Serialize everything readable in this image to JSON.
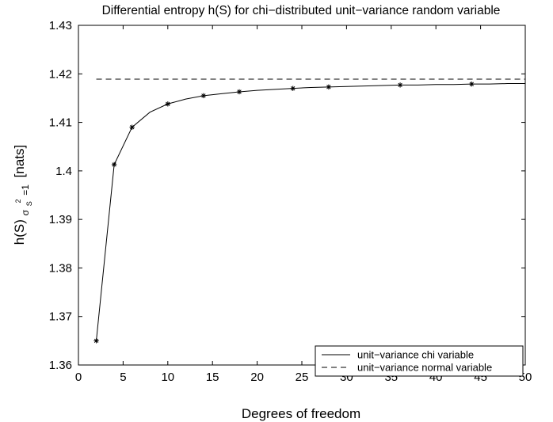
{
  "chart_data": {
    "type": "line",
    "title": "Differential entropy h(S) for chi−distributed unit−variance random variable",
    "xlabel": "Degrees of freedom",
    "ylabel": {
      "main": "h(S)",
      "sub_sigma": "σ",
      "sub_s": "S",
      "sup": "2",
      "sub_rest": "=1",
      "unit": "[nats]"
    },
    "xlim": [
      0,
      50
    ],
    "ylim": [
      1.36,
      1.43
    ],
    "xticks": [
      0,
      5,
      10,
      15,
      20,
      25,
      30,
      35,
      40,
      45,
      50
    ],
    "yticks": [
      1.36,
      1.37,
      1.38,
      1.39,
      1.4,
      1.41,
      1.42,
      1.43
    ],
    "xtick_labels": [
      "0",
      "5",
      "10",
      "15",
      "20",
      "25",
      "30",
      "35",
      "40",
      "45",
      "50"
    ],
    "ytick_labels": [
      "1.36",
      "1.37",
      "1.38",
      "1.39",
      "1.4",
      "1.41",
      "1.42",
      "1.43"
    ],
    "grid": false,
    "legend_position": "bottom-right",
    "series": [
      {
        "name": "unit−variance chi variable",
        "line_style": "solid",
        "color": "#000000",
        "x": [
          2,
          4,
          6,
          8,
          10,
          12,
          14,
          16,
          18,
          20,
          22,
          24,
          26,
          28,
          30,
          32,
          34,
          36,
          38,
          40,
          42,
          44,
          46,
          48,
          50
        ],
        "y": [
          1.365,
          1.4013,
          1.409,
          1.4121,
          1.4138,
          1.4148,
          1.4155,
          1.4159,
          1.4163,
          1.4166,
          1.4168,
          1.417,
          1.4172,
          1.4173,
          1.4174,
          1.4175,
          1.4176,
          1.4177,
          1.4177,
          1.4178,
          1.4178,
          1.4179,
          1.4179,
          1.418,
          1.418
        ]
      },
      {
        "name": "unit−variance normal variable",
        "line_style": "dashed",
        "color": "#000000",
        "x": [
          2,
          50
        ],
        "y": [
          1.4189,
          1.4189
        ]
      }
    ],
    "markers": {
      "symbol": "*",
      "x": [
        2,
        4,
        6,
        10,
        14,
        18,
        24,
        28,
        36,
        44
      ],
      "y": [
        1.365,
        1.4013,
        1.409,
        1.4138,
        1.4155,
        1.4163,
        1.417,
        1.4173,
        1.4177,
        1.4179
      ]
    }
  }
}
